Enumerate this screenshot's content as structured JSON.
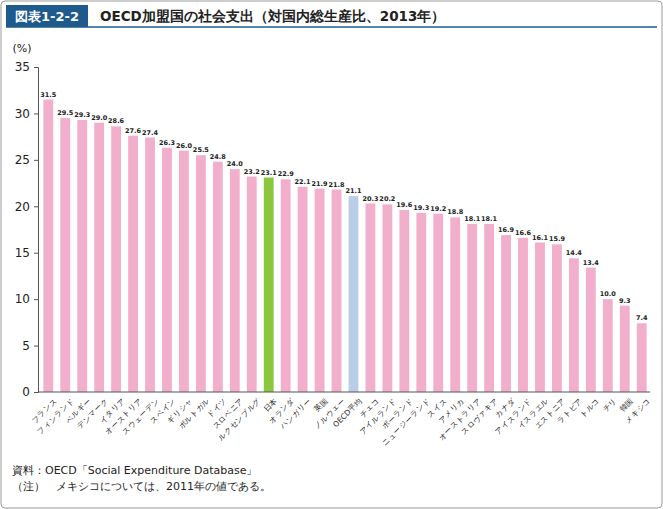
{
  "chart_data": {
    "type": "bar",
    "figure_label": "図表1-2-2",
    "title": "OECD加盟国の社会支出（対国内総生産比、2013年）",
    "y_label": "(%)",
    "categories": [
      "フランス",
      "フィンランド",
      "ベルギー",
      "デンマーク",
      "イタリア",
      "オーストリア",
      "スウェーデン",
      "スペイン",
      "ギリシャ",
      "ポルトガル",
      "ドイツ",
      "スロベニア",
      "ルクセンブルグ",
      "日本",
      "オランダ",
      "ハンガリー",
      "英国",
      "ノルウェー",
      "OECD平均",
      "チェコ",
      "アイルランド",
      "ポーランド",
      "ニュージーランド",
      "スイス",
      "アメリカ",
      "オーストラリア",
      "スロヴァキア",
      "カナダ",
      "アイスランド",
      "イスラエル",
      "エストニア",
      "ラトビア",
      "トルコ",
      "チリ",
      "韓国",
      "メキシコ"
    ],
    "values": [
      31.5,
      29.5,
      29.3,
      29.0,
      28.6,
      27.6,
      27.4,
      26.3,
      26.0,
      25.5,
      24.8,
      24.0,
      23.2,
      23.1,
      22.9,
      22.1,
      21.9,
      21.8,
      21.1,
      20.3,
      20.2,
      19.6,
      19.3,
      19.2,
      18.8,
      18.1,
      18.1,
      16.9,
      16.6,
      16.1,
      15.9,
      14.4,
      13.4,
      10.0,
      9.3,
      7.4
    ],
    "value_labels": [
      "31.5",
      "29.5",
      "29.3",
      "29.0",
      "28.6",
      "27.6",
      "27.4",
      "26.3",
      "26.0",
      "25.5",
      "24.8",
      "24.0",
      "23.2",
      "23.1",
      "22.9",
      "22.1",
      "21.9",
      "21.8",
      "21.1",
      "20.3",
      "20.2",
      "19.6",
      "19.3",
      "19.2",
      "18.8",
      "18.1",
      "18.1",
      "16.9",
      "16.6",
      "16.1",
      "15.9",
      "14.4",
      "13.4",
      "10.0",
      "9.3",
      "7.4"
    ],
    "colors": [
      "#f2afcc",
      "#f2afcc",
      "#f2afcc",
      "#f2afcc",
      "#f2afcc",
      "#f2afcc",
      "#f2afcc",
      "#f2afcc",
      "#f2afcc",
      "#f2afcc",
      "#f2afcc",
      "#f2afcc",
      "#f2afcc",
      "#8cc63e",
      "#f2afcc",
      "#f2afcc",
      "#f2afcc",
      "#f2afcc",
      "#b9cde8",
      "#f2afcc",
      "#f2afcc",
      "#f2afcc",
      "#f2afcc",
      "#f2afcc",
      "#f2afcc",
      "#f2afcc",
      "#f2afcc",
      "#f2afcc",
      "#f2afcc",
      "#f2afcc",
      "#f2afcc",
      "#f2afcc",
      "#f2afcc",
      "#f2afcc",
      "#f2afcc",
      "#f2afcc"
    ],
    "ylim": [
      0,
      35
    ],
    "yticks": [
      0,
      5,
      10,
      15,
      20,
      25,
      30,
      35
    ],
    "grid": false,
    "data_labels": true,
    "annotations": [
      "資料：OECD「Social Expenditure Database」",
      "（注）　メキシコについては、2011年の値である。"
    ]
  }
}
